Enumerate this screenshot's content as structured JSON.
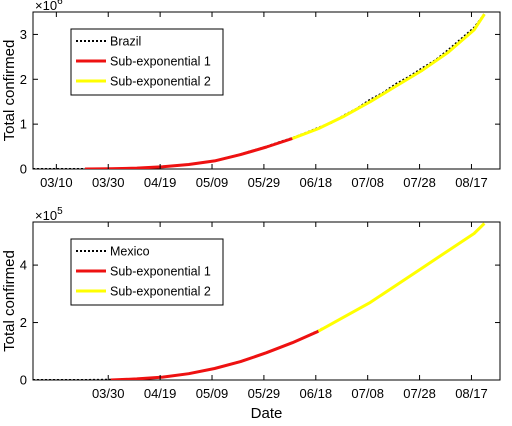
{
  "chart_data": [
    {
      "type": "line",
      "xlabel": "",
      "ylabel": "Total confirmed",
      "y_multiplier": "×10",
      "y_exponent": "6",
      "xlim": [
        0,
        180
      ],
      "ylim": [
        0,
        3.5
      ],
      "x_ticks": [
        {
          "label": "03/10",
          "day": 9
        },
        {
          "label": "03/30",
          "day": 29
        },
        {
          "label": "04/19",
          "day": 49
        },
        {
          "label": "05/09",
          "day": 69
        },
        {
          "label": "05/29",
          "day": 89
        },
        {
          "label": "06/18",
          "day": 109
        },
        {
          "label": "07/08",
          "day": 129
        },
        {
          "label": "07/28",
          "day": 149
        },
        {
          "label": "08/17",
          "day": 169
        }
      ],
      "y_ticks": [
        0,
        1,
        2,
        3
      ],
      "legend_position": "top-left",
      "series": [
        {
          "name": "Brazil",
          "style": "dotted",
          "color": "#000000",
          "x": [
            0,
            10,
            20,
            25,
            30,
            40,
            50,
            60,
            70,
            80,
            90,
            95,
            100,
            105,
            110,
            115,
            120,
            125,
            130,
            135,
            140,
            145,
            150,
            155,
            160,
            165,
            170,
            174
          ],
          "y": [
            0,
            0,
            0.001,
            0.003,
            0.006,
            0.02,
            0.05,
            0.1,
            0.18,
            0.33,
            0.5,
            0.6,
            0.69,
            0.8,
            0.92,
            1.03,
            1.2,
            1.35,
            1.55,
            1.7,
            1.9,
            2.06,
            2.25,
            2.42,
            2.65,
            2.9,
            3.15,
            3.45
          ]
        },
        {
          "name": "Sub-exponential 1",
          "style": "solid",
          "color": "#ee1111",
          "x": [
            20,
            30,
            40,
            50,
            60,
            70,
            80,
            90,
            100
          ],
          "y": [
            0,
            0.005,
            0.02,
            0.05,
            0.1,
            0.18,
            0.32,
            0.49,
            0.68
          ]
        },
        {
          "name": "Sub-exponential 2",
          "style": "solid",
          "color": "#ffff00",
          "x": [
            100,
            110,
            120,
            130,
            140,
            150,
            160,
            170,
            174
          ],
          "y": [
            0.68,
            0.9,
            1.18,
            1.5,
            1.85,
            2.2,
            2.6,
            3.1,
            3.45
          ]
        }
      ]
    },
    {
      "type": "line",
      "xlabel": "Date",
      "ylabel": "Total confirmed",
      "y_multiplier": "×10",
      "y_exponent": "5",
      "xlim": [
        0,
        180
      ],
      "ylim": [
        0,
        5.5
      ],
      "x_ticks": [
        {
          "label": "03/30",
          "day": 29
        },
        {
          "label": "04/19",
          "day": 49
        },
        {
          "label": "05/09",
          "day": 69
        },
        {
          "label": "05/29",
          "day": 89
        },
        {
          "label": "06/18",
          "day": 109
        },
        {
          "label": "07/08",
          "day": 129
        },
        {
          "label": "07/28",
          "day": 149
        },
        {
          "label": "08/17",
          "day": 169
        }
      ],
      "y_ticks": [
        0,
        2,
        4
      ],
      "legend_position": "top-left",
      "series": [
        {
          "name": "Mexico",
          "style": "dotted",
          "color": "#000000",
          "x": [
            0,
            10,
            20,
            30,
            40,
            50,
            60,
            70,
            80,
            90,
            100,
            105,
            110,
            115,
            120,
            125,
            130,
            135,
            140,
            145,
            150,
            155,
            160,
            165,
            170,
            174
          ],
          "y": [
            0,
            0,
            0,
            0.01,
            0.04,
            0.1,
            0.22,
            0.4,
            0.65,
            0.95,
            1.3,
            1.5,
            1.72,
            1.95,
            2.2,
            2.45,
            2.7,
            3.0,
            3.3,
            3.6,
            3.9,
            4.2,
            4.5,
            4.8,
            5.1,
            5.45
          ]
        },
        {
          "name": "Sub-exponential 1",
          "style": "solid",
          "color": "#ee1111",
          "x": [
            30,
            40,
            50,
            60,
            70,
            80,
            90,
            100,
            110
          ],
          "y": [
            0,
            0.04,
            0.1,
            0.22,
            0.4,
            0.64,
            0.95,
            1.3,
            1.7
          ]
        },
        {
          "name": "Sub-exponential 2",
          "style": "solid",
          "color": "#ffff00",
          "x": [
            110,
            120,
            130,
            140,
            150,
            160,
            170,
            174
          ],
          "y": [
            1.7,
            2.2,
            2.7,
            3.3,
            3.9,
            4.5,
            5.1,
            5.45
          ]
        }
      ]
    }
  ]
}
